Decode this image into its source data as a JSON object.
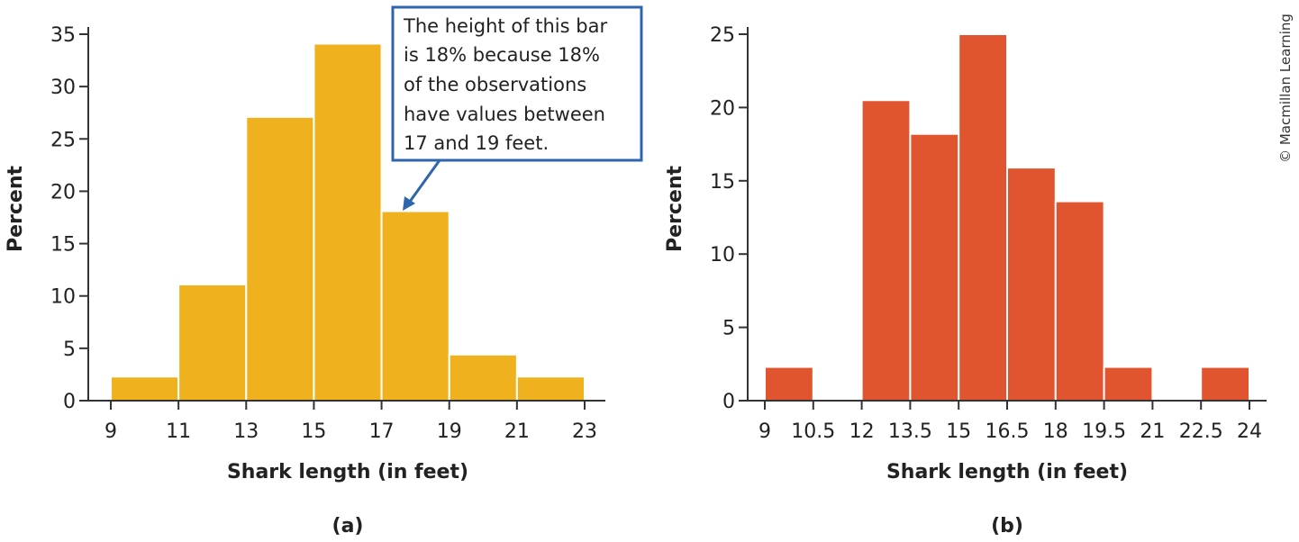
{
  "credit": "© Macmillan Learning",
  "chart_data": [
    {
      "type": "bar",
      "panel_label": "(a)",
      "xlabel": "Shark length (in feet)",
      "ylabel": "Percent",
      "bin_edges": [
        9,
        11,
        13,
        15,
        17,
        19,
        21,
        23
      ],
      "values": [
        2.3,
        11.1,
        27.1,
        34.1,
        18.1,
        4.4,
        2.3
      ],
      "xticks": [
        "9",
        "11",
        "13",
        "15",
        "17",
        "19",
        "21",
        "23"
      ],
      "yticks": [
        "0",
        "5",
        "10",
        "15",
        "20",
        "25",
        "30",
        "35"
      ],
      "ylim": [
        0,
        35
      ],
      "color": "#EFB11E",
      "annotation": {
        "lines": [
          "The height of this bar",
          "is 18% because 18%",
          "of the observations",
          "have values between",
          "17 and 19 feet."
        ],
        "border_color": "#2E65AD"
      }
    },
    {
      "type": "bar",
      "panel_label": "(b)",
      "xlabel": "Shark length (in feet)",
      "ylabel": "Percent",
      "bin_edges": [
        9,
        10.5,
        12,
        13.5,
        15,
        16.5,
        18,
        19.5,
        21,
        22.5,
        24
      ],
      "values": [
        2.3,
        0,
        20.5,
        18.2,
        25,
        15.9,
        13.6,
        2.3,
        0,
        2.3
      ],
      "xticks": [
        "9",
        "10.5",
        "12",
        "13.5",
        "15",
        "16.5",
        "18",
        "19.5",
        "21",
        "22.5",
        "24"
      ],
      "yticks": [
        "0",
        "5",
        "10",
        "15",
        "20",
        "25"
      ],
      "ylim": [
        0,
        25
      ],
      "color": "#E05530"
    }
  ]
}
